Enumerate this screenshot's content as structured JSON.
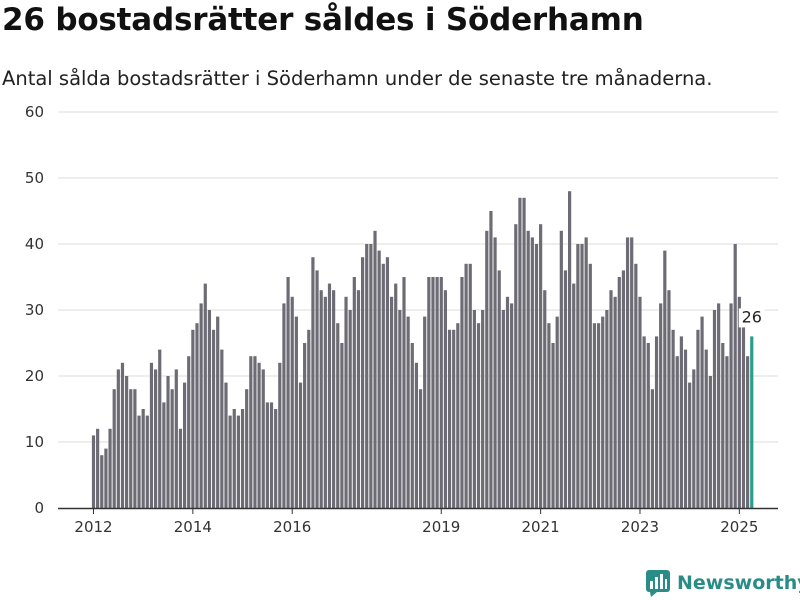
{
  "header": {
    "title": "26 bostadsrätter såldes i Söderhamn",
    "subtitle": "Antal sålda bostadsrätter i Söderhamn under de senaste tre månaderna."
  },
  "brand": {
    "name": "Newsworthy",
    "icon": "newsworthy-logo-icon",
    "color": "#2a8c86"
  },
  "colors": {
    "bar": "#6d6c75",
    "highlight": "#2a9d8f",
    "grid": "#dddddd",
    "axis": "#333333"
  },
  "chart_data": {
    "type": "bar",
    "title": "26 bostadsrätter såldes i Söderhamn",
    "subtitle": "Antal sålda bostadsrätter i Söderhamn under de senaste tre månaderna.",
    "xlabel": "",
    "ylabel": "",
    "ylim": [
      0,
      60
    ],
    "yticks": [
      0,
      10,
      20,
      30,
      40,
      50,
      60
    ],
    "xticks": [
      "2012",
      "2014",
      "2016",
      "2019",
      "2021",
      "2023",
      "2025"
    ],
    "grid": true,
    "legend": "none",
    "start_period": "2012-01",
    "interval": "month",
    "highlight_last": true,
    "last_value_label": "26",
    "values": [
      11,
      12,
      8,
      9,
      12,
      18,
      21,
      22,
      20,
      18,
      18,
      14,
      15,
      14,
      22,
      21,
      24,
      16,
      20,
      18,
      21,
      12,
      19,
      23,
      27,
      28,
      31,
      34,
      30,
      27,
      29,
      24,
      19,
      14,
      15,
      14,
      15,
      18,
      23,
      23,
      22,
      21,
      16,
      16,
      15,
      22,
      31,
      35,
      32,
      29,
      19,
      25,
      27,
      38,
      36,
      33,
      32,
      34,
      33,
      28,
      25,
      32,
      30,
      35,
      33,
      38,
      40,
      40,
      42,
      39,
      37,
      38,
      32,
      34,
      30,
      35,
      29,
      25,
      22,
      18,
      29,
      35,
      35,
      35,
      35,
      33,
      27,
      27,
      28,
      35,
      37,
      37,
      30,
      28,
      30,
      42,
      45,
      41,
      36,
      30,
      32,
      31,
      43,
      47,
      47,
      42,
      41,
      40,
      43,
      33,
      28,
      25,
      29,
      42,
      36,
      48,
      34,
      40,
      40,
      41,
      37,
      28,
      28,
      29,
      30,
      33,
      32,
      35,
      36,
      41,
      41,
      37,
      32,
      26,
      25,
      18,
      26,
      31,
      39,
      33,
      27,
      23,
      26,
      24,
      19,
      21,
      27,
      29,
      24,
      20,
      30,
      31,
      25,
      23,
      31,
      40,
      32,
      28,
      23,
      26
    ]
  }
}
